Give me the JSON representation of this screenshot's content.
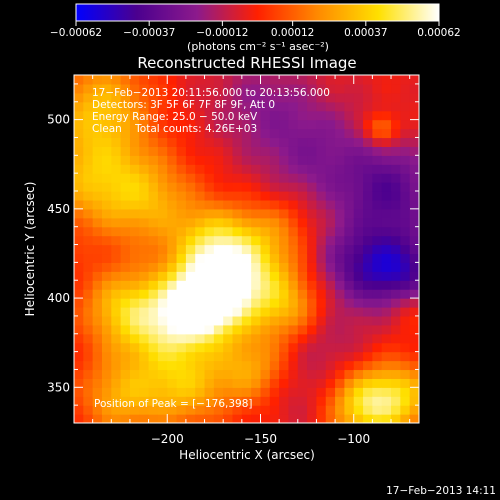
{
  "chart_data": {
    "type": "heatmap",
    "title": "Reconstructed RHESSI Image",
    "xlabel": "Heliocentric X (arcsec)",
    "ylabel": "Heliocentric Y (arcsec)",
    "xlim": [
      -250,
      -65
    ],
    "ylim": [
      330,
      525
    ],
    "x_ticks": [
      -200,
      -150,
      -100
    ],
    "x_tick_labels": [
      "−200",
      "−150",
      "−100"
    ],
    "y_ticks": [
      350,
      400,
      450,
      500
    ],
    "y_tick_labels": [
      "350",
      "400",
      "450",
      "500"
    ],
    "colorbar": {
      "min": -0.00062,
      "max": 0.00062,
      "tick_values": [
        -0.00062,
        -0.00037,
        -0.00012,
        0.00012,
        0.00037,
        0.00062
      ],
      "tick_labels": [
        "−0.00062",
        "−0.00037",
        "−0.00012",
        "0.00012",
        "0.00037",
        "0.00062"
      ],
      "unit_label": "(photons cm⁻² s⁻¹ asec⁻²)",
      "colors": [
        "#0000ff",
        "#4b008f",
        "#8c1a8c",
        "#ff2000",
        "#ff8a00",
        "#ffe000",
        "#ffffff"
      ]
    },
    "info_lines": [
      "17−Feb−2013 20:11:56.000 to 20:13:56.000",
      "Detectors: 3F 5F 6F 7F 8F 9F, Att 0",
      "Energy Range: 25.0 − 50.0 keV",
      "Clean    Total counts: 4.26E+03"
    ],
    "peak_label": "Position of Peak = [−176,398]",
    "peak": [
      -176,
      398
    ],
    "timestamp": "17−Feb−2013 14:11",
    "sources": [
      {
        "x": -180,
        "y": 398,
        "v": 0.00062,
        "s": 14
      },
      {
        "x": -160,
        "y": 412,
        "v": 0.00045,
        "s": 18
      },
      {
        "x": -200,
        "y": 385,
        "v": 0.0004,
        "s": 18
      },
      {
        "x": -175,
        "y": 430,
        "v": 0.00035,
        "s": 16
      },
      {
        "x": -225,
        "y": 395,
        "v": 0.0003,
        "s": 16
      },
      {
        "x": -240,
        "y": 470,
        "v": 0.00033,
        "s": 22
      },
      {
        "x": -235,
        "y": 510,
        "v": 0.0003,
        "s": 18
      },
      {
        "x": -210,
        "y": 455,
        "v": 0.00026,
        "s": 18
      },
      {
        "x": -190,
        "y": 350,
        "v": 0.0003,
        "s": 16
      },
      {
        "x": -225,
        "y": 345,
        "v": 0.0003,
        "s": 16
      },
      {
        "x": -155,
        "y": 360,
        "v": 0.00028,
        "s": 14
      },
      {
        "x": -135,
        "y": 395,
        "v": 0.00026,
        "s": 14
      },
      {
        "x": -140,
        "y": 440,
        "v": 0.00016,
        "s": 14
      },
      {
        "x": -95,
        "y": 340,
        "v": 0.0004,
        "s": 14
      },
      {
        "x": -75,
        "y": 345,
        "v": 0.00035,
        "s": 14
      },
      {
        "x": -70,
        "y": 395,
        "v": 0.00014,
        "s": 10
      },
      {
        "x": -85,
        "y": 495,
        "v": 0.00026,
        "s": 6
      },
      {
        "x": -120,
        "y": 480,
        "v": -0.0002,
        "s": 22
      },
      {
        "x": -80,
        "y": 460,
        "v": -0.00032,
        "s": 18
      },
      {
        "x": -75,
        "y": 415,
        "v": -0.0004,
        "s": 16
      },
      {
        "x": -100,
        "y": 420,
        "v": -0.00025,
        "s": 16
      },
      {
        "x": -150,
        "y": 510,
        "v": -0.00015,
        "s": 20
      },
      {
        "x": -115,
        "y": 375,
        "v": -0.00012,
        "s": 16
      },
      {
        "x": -130,
        "y": 345,
        "v": -8e-05,
        "s": 14
      }
    ]
  }
}
